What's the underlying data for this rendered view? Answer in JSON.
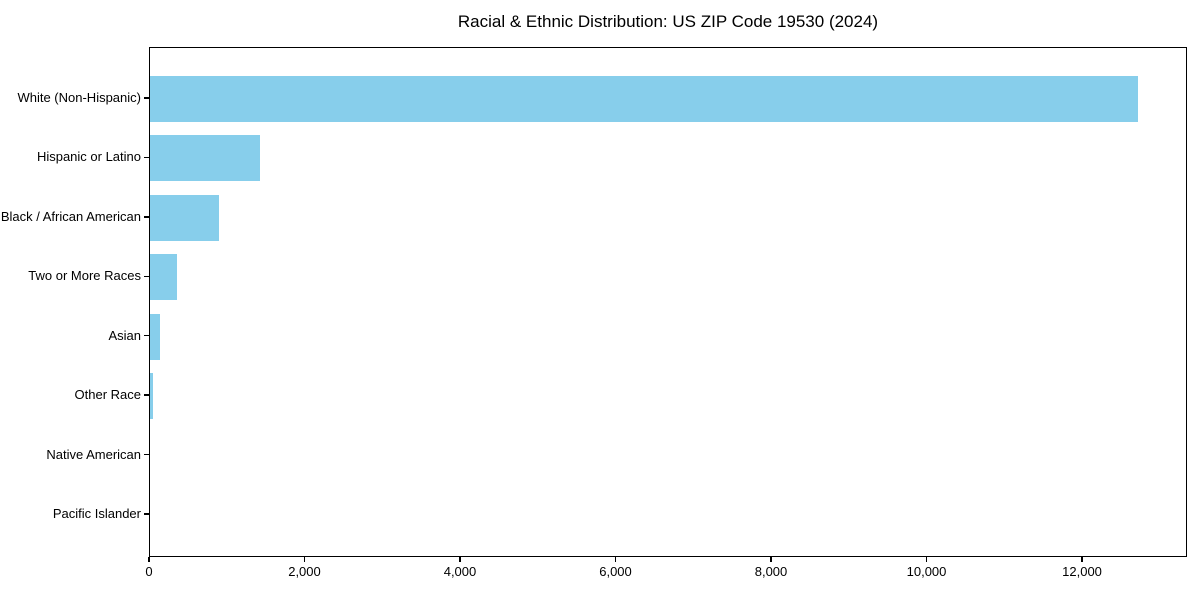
{
  "chart_data": {
    "type": "bar",
    "orientation": "horizontal",
    "title": "Racial & Ethnic Distribution: US ZIP Code 19530 (2024)",
    "categories": [
      "White (Non-Hispanic)",
      "Hispanic or Latino",
      "Black / African American",
      "Two or More Races",
      "Asian",
      "Other Race",
      "Native American",
      "Pacific Islander"
    ],
    "values": [
      12710,
      1410,
      885,
      350,
      125,
      40,
      0,
      0
    ],
    "xlabel": "",
    "ylabel": "",
    "xlim": [
      0,
      13350
    ],
    "xticks": [
      0,
      2000,
      4000,
      6000,
      8000,
      10000,
      12000
    ],
    "xtick_labels": [
      "0",
      "2,000",
      "4,000",
      "6,000",
      "8,000",
      "10,000",
      "12,000"
    ],
    "bar_color": "#87CEEB",
    "text_color": "#000000",
    "grid": false,
    "legend": null
  }
}
